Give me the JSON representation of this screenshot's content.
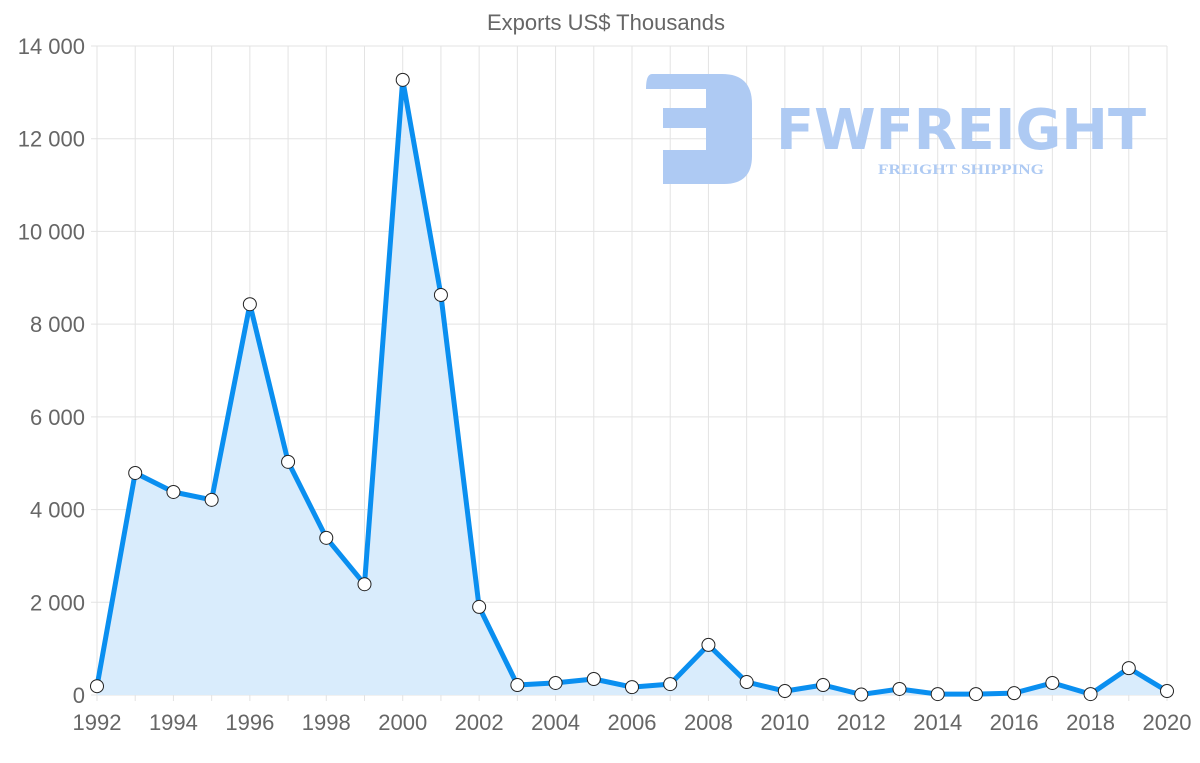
{
  "chart_data": {
    "type": "line",
    "title": "Exports US$ Thousands",
    "xlabel": "",
    "ylabel": "",
    "x": [
      1992,
      1993,
      1994,
      1995,
      1996,
      1997,
      1998,
      1999,
      2000,
      2001,
      2002,
      2003,
      2004,
      2005,
      2006,
      2007,
      2008,
      2009,
      2010,
      2011,
      2012,
      2013,
      2014,
      2015,
      2016,
      2017,
      2018,
      2019,
      2020
    ],
    "series": [
      {
        "name": "Exports US$ Thousands",
        "values": [
          190,
          4790,
          4380,
          4210,
          8430,
          5030,
          3390,
          2390,
          13270,
          8630,
          1900,
          215,
          260,
          345,
          170,
          235,
          1080,
          280,
          85,
          215,
          10,
          130,
          20,
          20,
          40,
          260,
          20,
          580,
          85
        ]
      }
    ],
    "ylim": [
      0,
      14000
    ],
    "xlim": [
      1992,
      2020
    ],
    "yticks": [
      "0",
      "2 000",
      "4 000",
      "6 000",
      "8 000",
      "10 000",
      "12 000",
      "14 000"
    ],
    "xticks": [
      "1992",
      "1994",
      "1996",
      "1998",
      "2000",
      "2002",
      "2004",
      "2006",
      "2008",
      "2010",
      "2012",
      "2014",
      "2016",
      "2018",
      "2020"
    ],
    "grid": true,
    "filled_area": true,
    "colors": {
      "line": "#0a8ff0",
      "fill": "#d9ecfc",
      "grid": "#e3e3e3",
      "logo": "#aecaf3"
    }
  },
  "watermark": {
    "brand": "FWFREIGHT",
    "tagline": "FREIGHT SHIPPING"
  }
}
